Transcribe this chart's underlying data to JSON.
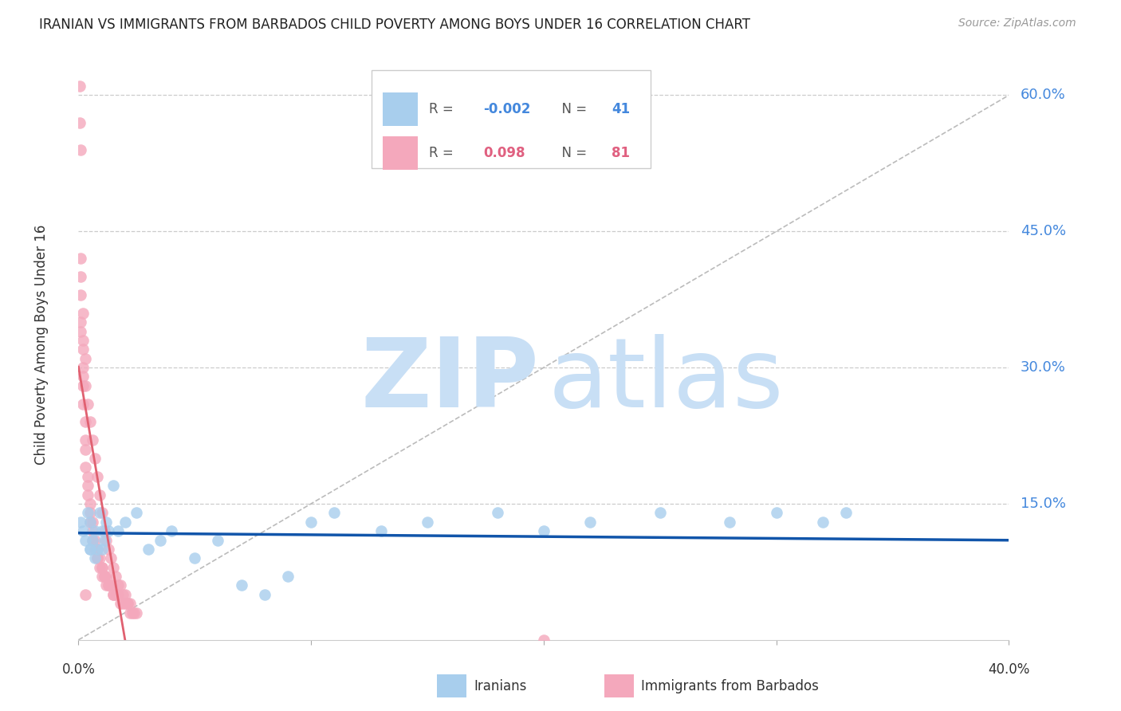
{
  "title": "IRANIAN VS IMMIGRANTS FROM BARBADOS CHILD POVERTY AMONG BOYS UNDER 16 CORRELATION CHART",
  "source": "Source: ZipAtlas.com",
  "ylabel": "Child Poverty Among Boys Under 16",
  "ytick_labels": [
    "60.0%",
    "45.0%",
    "30.0%",
    "15.0%"
  ],
  "ytick_values": [
    0.6,
    0.45,
    0.3,
    0.15
  ],
  "xlim": [
    0.0,
    0.4
  ],
  "ylim": [
    0.0,
    0.65
  ],
  "color_blue": "#A8CEED",
  "color_pink": "#F4A8BC",
  "color_line_blue": "#1155AA",
  "color_line_pink": "#E06070",
  "color_diagonal": "#BBBBBB",
  "watermark_zip_color": "#C8DFF5",
  "watermark_atlas_color": "#C8DFF5",
  "iranians_x": [
    0.001,
    0.002,
    0.003,
    0.004,
    0.005,
    0.005,
    0.006,
    0.007,
    0.007,
    0.008,
    0.009,
    0.01,
    0.01,
    0.011,
    0.012,
    0.013,
    0.015,
    0.017,
    0.02,
    0.025,
    0.03,
    0.035,
    0.04,
    0.05,
    0.06,
    0.07,
    0.08,
    0.09,
    0.1,
    0.11,
    0.13,
    0.15,
    0.18,
    0.2,
    0.22,
    0.25,
    0.28,
    0.3,
    0.32,
    0.33,
    0.005
  ],
  "iranians_y": [
    0.13,
    0.12,
    0.11,
    0.14,
    0.1,
    0.13,
    0.11,
    0.09,
    0.12,
    0.1,
    0.14,
    0.1,
    0.12,
    0.11,
    0.13,
    0.12,
    0.17,
    0.12,
    0.13,
    0.14,
    0.1,
    0.11,
    0.12,
    0.09,
    0.11,
    0.06,
    0.05,
    0.07,
    0.13,
    0.14,
    0.12,
    0.13,
    0.14,
    0.12,
    0.13,
    0.14,
    0.13,
    0.14,
    0.13,
    0.14,
    0.1
  ],
  "barbados_x": [
    0.0005,
    0.0005,
    0.0008,
    0.001,
    0.001,
    0.001,
    0.002,
    0.002,
    0.002,
    0.002,
    0.003,
    0.003,
    0.003,
    0.003,
    0.004,
    0.004,
    0.004,
    0.005,
    0.005,
    0.005,
    0.006,
    0.006,
    0.006,
    0.007,
    0.007,
    0.008,
    0.008,
    0.008,
    0.009,
    0.009,
    0.01,
    0.01,
    0.01,
    0.011,
    0.011,
    0.012,
    0.012,
    0.013,
    0.013,
    0.014,
    0.015,
    0.015,
    0.016,
    0.017,
    0.018,
    0.019,
    0.02,
    0.021,
    0.022,
    0.023,
    0.024,
    0.025,
    0.002,
    0.003,
    0.004,
    0.005,
    0.006,
    0.007,
    0.008,
    0.009,
    0.01,
    0.011,
    0.012,
    0.013,
    0.014,
    0.015,
    0.016,
    0.017,
    0.018,
    0.019,
    0.02,
    0.021,
    0.022,
    0.001,
    0.002,
    0.003,
    0.2,
    0.001,
    0.002,
    0.003
  ],
  "barbados_y": [
    0.61,
    0.57,
    0.54,
    0.4,
    0.38,
    0.34,
    0.32,
    0.3,
    0.28,
    0.26,
    0.24,
    0.22,
    0.21,
    0.19,
    0.18,
    0.17,
    0.16,
    0.15,
    0.14,
    0.13,
    0.13,
    0.12,
    0.11,
    0.11,
    0.1,
    0.1,
    0.09,
    0.09,
    0.09,
    0.08,
    0.08,
    0.08,
    0.07,
    0.07,
    0.07,
    0.07,
    0.06,
    0.06,
    0.06,
    0.06,
    0.05,
    0.05,
    0.05,
    0.05,
    0.04,
    0.04,
    0.04,
    0.04,
    0.03,
    0.03,
    0.03,
    0.03,
    0.29,
    0.28,
    0.26,
    0.24,
    0.22,
    0.2,
    0.18,
    0.16,
    0.14,
    0.12,
    0.11,
    0.1,
    0.09,
    0.08,
    0.07,
    0.06,
    0.06,
    0.05,
    0.05,
    0.04,
    0.04,
    0.35,
    0.33,
    0.31,
    0.0,
    0.42,
    0.36,
    0.05
  ]
}
